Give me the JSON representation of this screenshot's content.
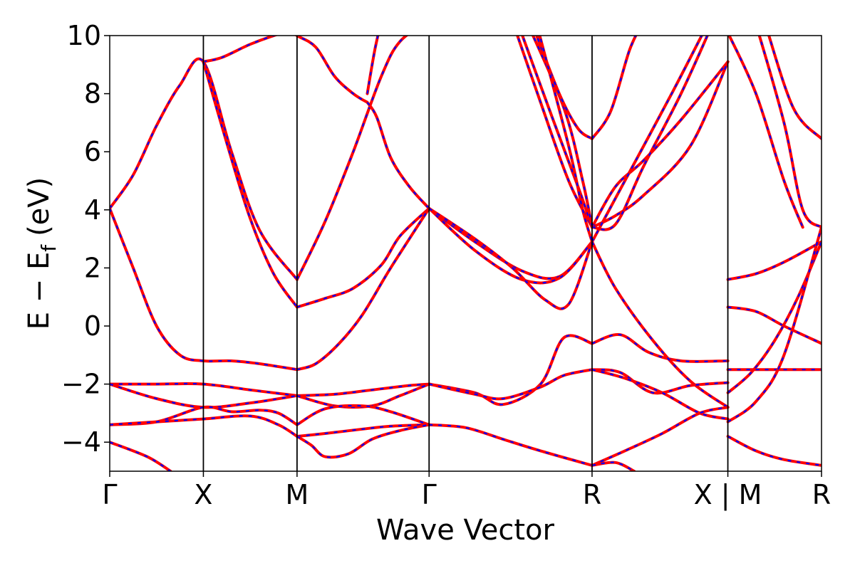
{
  "chart_data": {
    "type": "line",
    "title": "",
    "xlabel": "Wave Vector",
    "ylabel_main": "E − E",
    "ylabel_sub": "f",
    "ylabel_unit": "(eV)",
    "ylim": [
      -5,
      10
    ],
    "yticks": [
      -4,
      -2,
      0,
      2,
      4,
      6,
      8,
      10
    ],
    "ytick_labels": [
      "−4",
      "−2",
      "0",
      "2",
      "4",
      "6",
      "8",
      "10"
    ],
    "x_range": [
      0,
      7.6
    ],
    "kpoints": [
      {
        "label": "Γ",
        "x": 0
      },
      {
        "label": "X",
        "x": 1.0
      },
      {
        "label": "M",
        "x": 2.0
      },
      {
        "label": "Γ",
        "x": 3.41
      },
      {
        "label": "R",
        "x": 5.15
      },
      {
        "label": "X | M",
        "x": 6.6
      },
      {
        "label": "R",
        "x": 7.6
      }
    ],
    "line_colors": {
      "band": "#ff0000",
      "overlay": "#0000ff"
    },
    "series": [
      {
        "x": [
          0,
          0.25,
          0.5,
          0.75,
          1.0,
          1.3,
          1.6,
          2.0
        ],
        "y": [
          4.05,
          5.2,
          6.9,
          8.3,
          9.1,
          6.0,
          3.3,
          1.6
        ]
      },
      {
        "x": [
          0,
          0.25,
          0.5,
          0.75,
          1.0,
          1.3,
          1.6,
          2.0
        ],
        "y": [
          4.05,
          2.0,
          0.0,
          -1.0,
          -1.2,
          -1.2,
          -1.3,
          -1.5
        ]
      },
      {
        "x": [
          1.0,
          1.2,
          1.5,
          1.8,
          2.0
        ],
        "y": [
          9.1,
          9.25,
          9.7,
          10.05,
          10.2
        ]
      },
      {
        "x": [
          1.0,
          1.25,
          1.5,
          1.75,
          2.0
        ],
        "y": [
          9.1,
          6.3,
          3.7,
          1.8,
          0.65
        ]
      },
      {
        "x": [
          0,
          0.5,
          1.0,
          1.5,
          2.0
        ],
        "y": [
          -2.0,
          -2.0,
          -2.0,
          -2.2,
          -2.4
        ]
      },
      {
        "x": [
          0,
          0.5,
          1.0,
          1.5,
          2.0
        ],
        "y": [
          -2.0,
          -2.5,
          -2.8,
          -2.65,
          -2.4
        ]
      },
      {
        "x": [
          0,
          0.5,
          1.0,
          1.3,
          1.6,
          1.8,
          2.0
        ],
        "y": [
          -3.4,
          -3.3,
          -2.8,
          -2.95,
          -2.9,
          -3.0,
          -3.4
        ]
      },
      {
        "x": [
          0,
          0.5,
          1.0,
          1.5,
          1.8,
          2.0
        ],
        "y": [
          -3.4,
          -3.3,
          -3.2,
          -3.1,
          -3.4,
          -3.8
        ]
      },
      {
        "x": [
          0,
          0.4,
          0.65
        ],
        "y": [
          -4.0,
          -4.5,
          -5.0
        ]
      },
      {
        "x": [
          2.0,
          2.3,
          2.6,
          2.9,
          3.1,
          3.41
        ],
        "y": [
          1.6,
          3.6,
          6.0,
          8.6,
          9.8,
          10.5
        ]
      },
      {
        "x": [
          2.0,
          2.3,
          2.6,
          2.9,
          3.1,
          3.41
        ],
        "y": [
          0.65,
          0.95,
          1.3,
          2.1,
          3.1,
          4.05
        ]
      },
      {
        "x": [
          2.0,
          2.2,
          2.45,
          2.7,
          3.0,
          3.41
        ],
        "y": [
          -1.5,
          -1.3,
          -0.6,
          0.4,
          2.0,
          4.05
        ]
      },
      {
        "x": [
          2.0,
          2.4,
          2.8,
          3.2,
          3.41
        ],
        "y": [
          -2.4,
          -2.35,
          -2.2,
          -2.05,
          -2.0
        ]
      },
      {
        "x": [
          2.0,
          2.4,
          2.8,
          3.1,
          3.41
        ],
        "y": [
          -2.4,
          -2.75,
          -2.75,
          -2.4,
          -2.0
        ]
      },
      {
        "x": [
          2.0,
          2.3,
          2.7,
          3.0,
          3.41
        ],
        "y": [
          -3.4,
          -2.85,
          -2.75,
          -2.95,
          -3.4
        ]
      },
      {
        "x": [
          2.0,
          2.3,
          2.7,
          3.0,
          3.41
        ],
        "y": [
          -3.8,
          -3.7,
          -3.55,
          -3.45,
          -3.4
        ]
      },
      {
        "x": [
          2.0,
          2.15,
          2.3,
          2.55,
          2.8,
          3.1,
          3.41
        ],
        "y": [
          -3.8,
          -4.1,
          -4.5,
          -4.4,
          -3.9,
          -3.6,
          -3.4
        ]
      },
      {
        "x": [
          1.8,
          2.0,
          2.2,
          2.4,
          2.6,
          2.75
        ],
        "y": [
          10.4,
          10.0,
          9.6,
          8.6,
          8.0,
          7.7
        ]
      },
      {
        "x": [
          2.75,
          2.85,
          3.0,
          3.2,
          3.41
        ],
        "y": [
          7.7,
          7.2,
          5.8,
          4.8,
          4.05
        ]
      },
      {
        "x": [
          2.75,
          2.83,
          2.9
        ],
        "y": [
          8.0,
          9.5,
          10.5
        ]
      },
      {
        "x": [
          3.41,
          3.9,
          4.4,
          4.8,
          5.15
        ],
        "y": [
          4.05,
          2.9,
          1.9,
          1.7,
          2.9
        ]
      },
      {
        "x": [
          3.41,
          3.9,
          4.4,
          4.8,
          5.15
        ],
        "y": [
          4.05,
          2.6,
          1.6,
          1.65,
          2.9
        ]
      },
      {
        "x": [
          3.41,
          3.9,
          4.3,
          4.65,
          4.9,
          5.15
        ],
        "y": [
          4.05,
          3.0,
          2.0,
          0.9,
          0.75,
          2.9
        ]
      },
      {
        "x": [
          3.41,
          3.9,
          4.2,
          4.6,
          4.85,
          5.15
        ],
        "y": [
          -2.0,
          -2.3,
          -2.7,
          -2.0,
          -0.4,
          -0.6
        ]
      },
      {
        "x": [
          3.41,
          3.9,
          4.2,
          4.6,
          4.85,
          5.15
        ],
        "y": [
          -2.0,
          -2.35,
          -2.5,
          -2.1,
          -1.7,
          -1.5
        ]
      },
      {
        "x": [
          3.41,
          3.8,
          4.2,
          4.6,
          5.15
        ],
        "y": [
          -3.4,
          -3.5,
          -3.9,
          -4.3,
          -4.8
        ]
      },
      {
        "x": [
          4.3,
          4.6,
          4.9,
          5.15
        ],
        "y": [
          10.5,
          7.7,
          5.0,
          3.4
        ]
      },
      {
        "x": [
          4.35,
          4.7,
          5.0,
          5.15
        ],
        "y": [
          10.5,
          7.4,
          4.8,
          3.4
        ]
      },
      {
        "x": [
          4.45,
          4.85,
          5.05,
          5.15
        ],
        "y": [
          10.5,
          7.5,
          5.0,
          3.4
        ]
      },
      {
        "x": [
          4.5,
          4.8,
          5.0,
          5.15
        ],
        "y": [
          10.5,
          8.0,
          6.8,
          6.45
        ]
      },
      {
        "x": [
          4.55,
          4.9,
          5.05,
          5.15
        ],
        "y": [
          10.5,
          6.2,
          4.0,
          2.9
        ]
      },
      {
        "x": [
          5.15,
          5.4,
          5.7,
          6.1,
          6.6
        ],
        "y": [
          3.4,
          4.8,
          5.7,
          7.1,
          9.1
        ]
      },
      {
        "x": [
          5.15,
          5.4,
          5.7,
          6.2,
          6.6
        ],
        "y": [
          3.4,
          3.8,
          4.5,
          6.2,
          9.1
        ]
      },
      {
        "x": [
          5.15,
          5.35,
          5.55,
          5.7
        ],
        "y": [
          6.45,
          7.4,
          9.5,
          10.5
        ]
      },
      {
        "x": [
          5.15,
          5.4,
          5.7,
          6.1,
          6.45
        ],
        "y": [
          3.4,
          3.5,
          5.5,
          8.0,
          10.5
        ]
      },
      {
        "x": [
          5.15,
          5.5,
          6.0,
          6.4
        ],
        "y": [
          2.9,
          5.0,
          8.0,
          10.5
        ]
      },
      {
        "x": [
          5.15,
          5.45,
          5.75,
          6.1,
          6.6
        ],
        "y": [
          -0.6,
          -0.3,
          -0.9,
          -1.2,
          -1.2
        ]
      },
      {
        "x": [
          5.15,
          5.4,
          5.8,
          6.2,
          6.6
        ],
        "y": [
          2.9,
          1.3,
          -0.5,
          -1.9,
          -2.8
        ]
      },
      {
        "x": [
          5.15,
          5.45,
          5.8,
          6.2,
          6.6
        ],
        "y": [
          -1.5,
          -1.6,
          -2.3,
          -2.05,
          -1.95
        ]
      },
      {
        "x": [
          5.15,
          5.5,
          5.9,
          6.3,
          6.6
        ],
        "y": [
          -1.5,
          -1.8,
          -2.3,
          -3.0,
          -3.2
        ]
      },
      {
        "x": [
          5.15,
          5.5,
          5.9,
          6.3,
          6.6
        ],
        "y": [
          -4.8,
          -4.3,
          -3.7,
          -3.0,
          -2.8
        ]
      },
      {
        "x": [
          5.15,
          5.4,
          5.6
        ],
        "y": [
          -4.8,
          -4.7,
          -5.0
        ]
      },
      {
        "x": [
          6.6,
          6.9,
          7.2,
          7.6
        ],
        "y": [
          1.6,
          1.8,
          2.2,
          2.9
        ]
      },
      {
        "x": [
          6.6,
          6.9,
          7.2,
          7.6
        ],
        "y": [
          0.65,
          0.5,
          0.0,
          -0.6
        ]
      },
      {
        "x": [
          6.6,
          6.9,
          7.2,
          7.6
        ],
        "y": [
          -1.5,
          -1.5,
          -1.5,
          -1.5
        ]
      },
      {
        "x": [
          6.6,
          6.85,
          7.1,
          7.35,
          7.6
        ],
        "y": [
          -2.3,
          -1.6,
          -0.5,
          1.0,
          2.9
        ]
      },
      {
        "x": [
          6.6,
          6.9,
          7.2,
          7.6
        ],
        "y": [
          -3.3,
          -2.6,
          -1.0,
          3.4
        ]
      },
      {
        "x": [
          6.6,
          6.9,
          7.2,
          7.6
        ],
        "y": [
          -3.8,
          -4.3,
          -4.6,
          -4.8
        ]
      },
      {
        "x": [
          6.6,
          6.9,
          7.2,
          7.4
        ],
        "y": [
          10.1,
          8.0,
          5.0,
          3.4
        ]
      },
      {
        "x": [
          6.9,
          7.2,
          7.4,
          7.6
        ],
        "y": [
          10.4,
          7.0,
          4.0,
          3.4
        ]
      },
      {
        "x": [
          7.0,
          7.3,
          7.6
        ],
        "y": [
          10.4,
          7.5,
          6.45
        ]
      }
    ]
  }
}
